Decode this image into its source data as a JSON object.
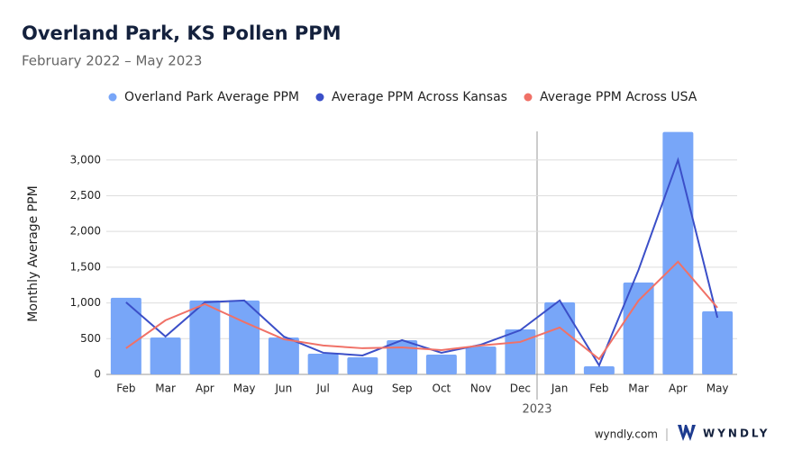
{
  "chart_data": {
    "type": "bar_line",
    "title": "Overland Park, KS Pollen PPM",
    "subtitle": "February 2022 – May 2023",
    "y_label": "Monthly Average PPM",
    "annotation": "2023",
    "footer": "wyndly.com",
    "brand": "WYNDLY",
    "categories": [
      "Feb",
      "Mar",
      "Apr",
      "May",
      "Jun",
      "Jul",
      "Aug",
      "Sep",
      "Oct",
      "Nov",
      "Dec",
      "Jan",
      "Feb",
      "Mar",
      "Apr",
      "May"
    ],
    "series": [
      {
        "name": "Overland Park Average PPM",
        "color": "#78a6f8",
        "kind": "bar",
        "values": [
          1072,
          517,
          1034,
          1034,
          517,
          290,
          240,
          479,
          277,
          391,
          630,
          1009,
          113,
          1286,
          3392,
          883
        ]
      },
      {
        "name": "Average PPM Across Kansas",
        "color": "#3b4fc8",
        "kind": "line",
        "values": [
          1009,
          530,
          1009,
          1034,
          530,
          303,
          265,
          479,
          303,
          416,
          618,
          1034,
          126,
          1463,
          3000,
          794
        ]
      },
      {
        "name": "Average PPM Across USA",
        "color": "#f07167",
        "kind": "line",
        "values": [
          366,
          757,
          984,
          731,
          492,
          404,
          366,
          378,
          340,
          404,
          454,
          656,
          214,
          1034,
          1576,
          933
        ]
      }
    ],
    "ylim": [
      0,
      3400
    ],
    "yticks": [
      0,
      500,
      {
        "value": 1000,
        "label": "1,000"
      },
      {
        "value": 1500,
        "label": "1,500"
      },
      {
        "value": 2000,
        "label": "2,000"
      },
      {
        "value": 2500,
        "label": "2,500"
      },
      {
        "value": 3000,
        "label": "3,000"
      }
    ],
    "grid": true
  }
}
